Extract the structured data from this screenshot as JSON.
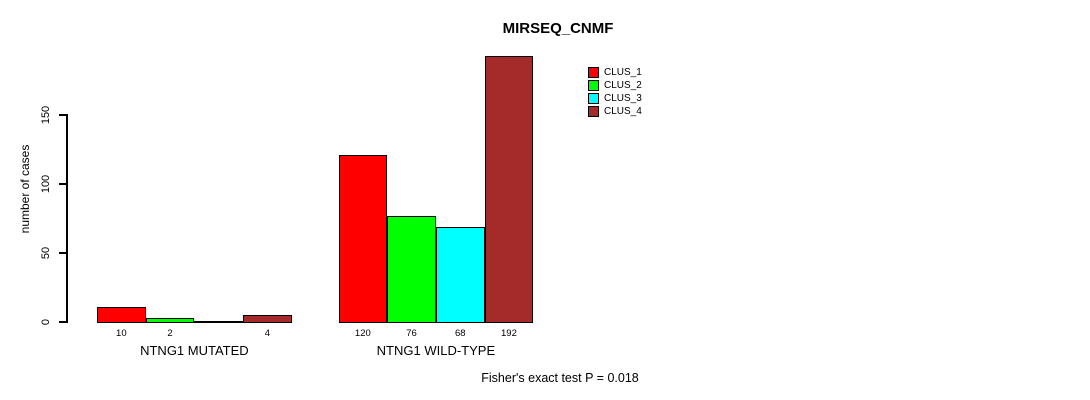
{
  "chart_data": {
    "type": "bar",
    "title": "MIRSEQ_CNMF",
    "ylabel": "number of cases",
    "xlabel": "",
    "yticks": [
      0,
      50,
      100,
      150
    ],
    "ylim": [
      0,
      192
    ],
    "grid": false,
    "legend_position": "top-right",
    "categories": [
      "NTNG1 MUTATED",
      "NTNG1 WILD-TYPE"
    ],
    "series": [
      {
        "name": "CLUS_1",
        "color": "#ff0000",
        "values": [
          10,
          120
        ]
      },
      {
        "name": "CLUS_2",
        "color": "#00ff00",
        "values": [
          2,
          76
        ]
      },
      {
        "name": "CLUS_3",
        "color": "#00ffff",
        "values": [
          0,
          68
        ]
      },
      {
        "name": "CLUS_4",
        "color": "#a52a2a",
        "values": [
          4,
          192
        ]
      }
    ],
    "groups": [
      {
        "label": "NTNG1 MUTATED",
        "values": [
          10,
          2,
          0,
          4
        ],
        "bar_labels": [
          "10",
          "2",
          "",
          "4"
        ]
      },
      {
        "label": "NTNG1 WILD-TYPE",
        "values": [
          120,
          76,
          68,
          192
        ],
        "bar_labels": [
          "120",
          "76",
          "68",
          "192"
        ]
      }
    ],
    "footnote": "Fisher's exact test P = 0.018"
  }
}
